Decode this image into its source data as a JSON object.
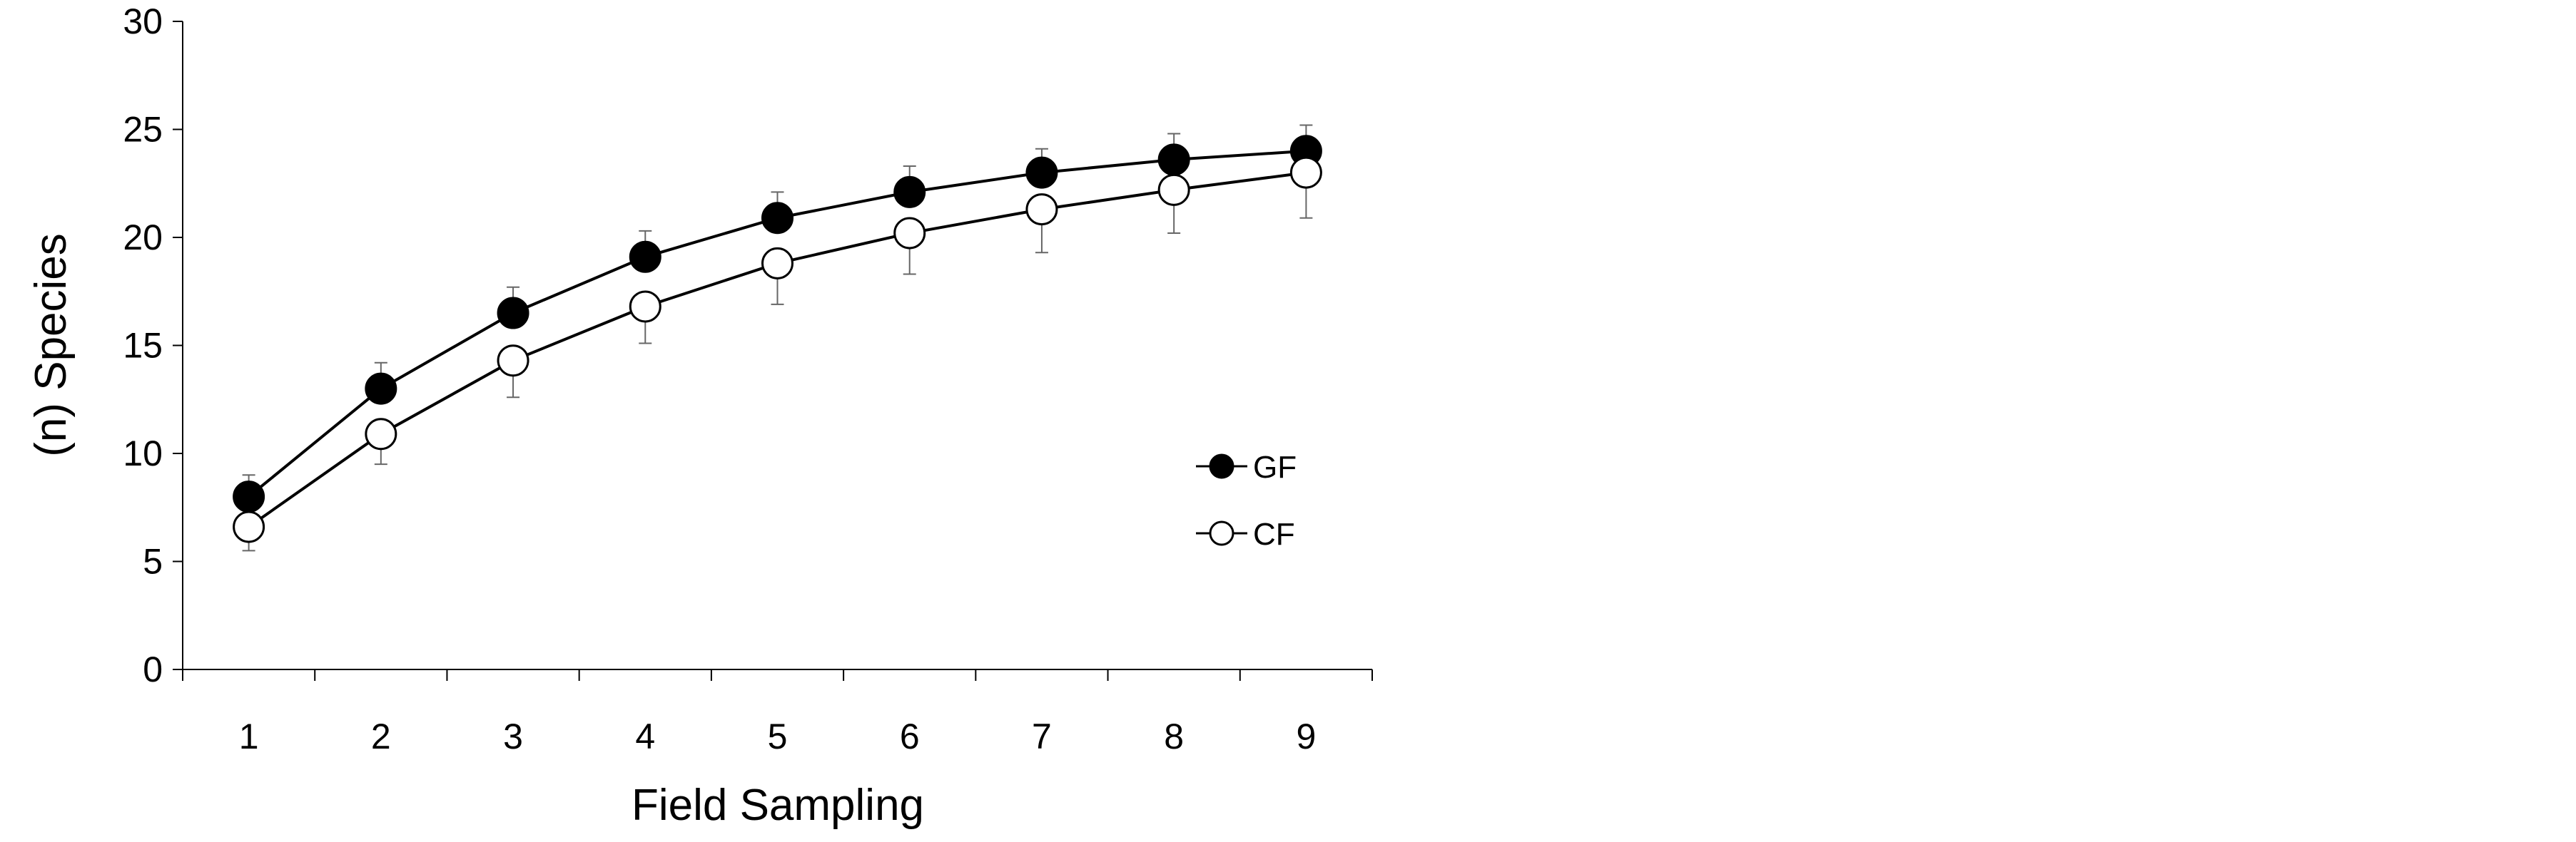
{
  "chart_data": {
    "type": "line",
    "title": "",
    "xlabel": "Field Sampling",
    "ylabel": "(n) Species",
    "x": [
      1,
      2,
      3,
      4,
      5,
      6,
      7,
      8,
      9
    ],
    "x_tick_labels": [
      "1",
      "2",
      "3",
      "4",
      "5",
      "6",
      "7",
      "8",
      "9"
    ],
    "y_tick_labels": [
      "0",
      "5",
      "10",
      "15",
      "20",
      "25",
      "30"
    ],
    "y_ticks": [
      0,
      5,
      10,
      15,
      20,
      25,
      30
    ],
    "ylim": [
      0,
      30
    ],
    "grid": false,
    "legend_position": "right-middle",
    "series": [
      {
        "name": "GF",
        "marker": "filled-circle",
        "color": "#000000",
        "values": [
          8.0,
          13.0,
          16.5,
          19.1,
          20.9,
          22.1,
          23.0,
          23.6,
          24.0
        ],
        "error": [
          1.0,
          1.2,
          1.2,
          1.2,
          1.2,
          1.2,
          1.1,
          1.2,
          1.2
        ],
        "error_direction": "up"
      },
      {
        "name": "CF",
        "marker": "open-circle",
        "color": "#000000",
        "values": [
          6.6,
          10.9,
          14.3,
          16.8,
          18.8,
          20.2,
          21.3,
          22.2,
          23.0
        ],
        "error": [
          1.1,
          1.4,
          1.7,
          1.7,
          1.9,
          1.9,
          2.0,
          2.0,
          2.1
        ],
        "error_direction": "down"
      }
    ]
  }
}
